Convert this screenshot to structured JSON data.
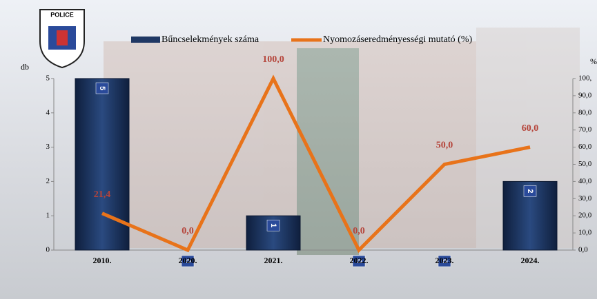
{
  "chart_data": {
    "type": "bar-line",
    "logo_text": "POLICE",
    "y_label": "db",
    "y2_label": "%",
    "categories": [
      "2010.",
      "2020.",
      "2021.",
      "2022.",
      "2023.",
      "2024."
    ],
    "series": [
      {
        "name": "Bűncselekmények száma",
        "color": "#1f3864",
        "values": [
          5,
          0,
          1,
          0,
          0,
          2
        ]
      },
      {
        "name": "Nyomozáseredményességi mutató (%)",
        "color": "#e8731a",
        "axis": "y2",
        "values": [
          21.4,
          0,
          100,
          0,
          50,
          60
        ],
        "value_labels": [
          "21,4",
          "0,0",
          "100,0",
          "0,0",
          "50,0",
          "60,0"
        ]
      }
    ],
    "ylim": [
      0,
      5
    ],
    "yticks": [
      0,
      1,
      2,
      3,
      4,
      5
    ],
    "y2lim": [
      0,
      100
    ],
    "y2ticks": [
      {
        "value": 0,
        "label": "0,0"
      },
      {
        "value": 10,
        "label": "10,0"
      },
      {
        "value": 20,
        "label": "20,0"
      },
      {
        "value": 30,
        "label": "30,0"
      },
      {
        "value": 40,
        "label": "40,0"
      },
      {
        "value": 50,
        "label": "50,0"
      },
      {
        "value": 60,
        "label": "60,0"
      },
      {
        "value": 70,
        "label": "70,0"
      },
      {
        "value": 80,
        "label": "80,0"
      },
      {
        "value": 90,
        "label": "90,0"
      },
      {
        "value": 100,
        "label": "100,"
      }
    ]
  }
}
